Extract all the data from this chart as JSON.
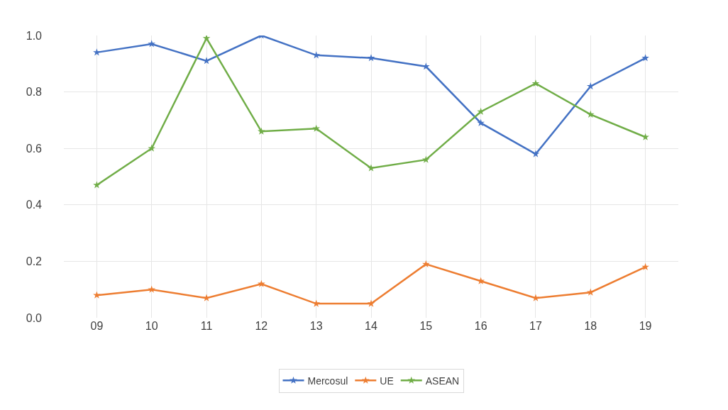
{
  "chart_data": {
    "type": "line",
    "categories": [
      "09",
      "10",
      "11",
      "12",
      "13",
      "14",
      "15",
      "16",
      "17",
      "18",
      "19"
    ],
    "series": [
      {
        "name": "Mercosul",
        "color": "#4472c4",
        "values": [
          0.94,
          0.97,
          0.91,
          1.0,
          0.93,
          0.92,
          0.89,
          0.69,
          0.58,
          0.82,
          0.92
        ]
      },
      {
        "name": "UE",
        "color": "#ed7d31",
        "values": [
          0.08,
          0.1,
          0.07,
          0.12,
          0.05,
          0.05,
          0.19,
          0.13,
          0.07,
          0.09,
          0.18
        ]
      },
      {
        "name": "ASEAN",
        "color": "#70ad47",
        "values": [
          0.47,
          0.6,
          0.99,
          0.66,
          0.67,
          0.53,
          0.56,
          0.73,
          0.83,
          0.72,
          0.64
        ]
      }
    ],
    "ylim": [
      0,
      1.0
    ],
    "yticks": [
      {
        "value": 0,
        "label": "0.0"
      },
      {
        "value": 0.2,
        "label": "0.2"
      },
      {
        "value": 0.4,
        "label": "0.4"
      },
      {
        "value": 0.6,
        "label": "0.6"
      },
      {
        "value": 0.8,
        "label": "0.8"
      },
      {
        "value": 1.0,
        "label": "1.0"
      }
    ],
    "grid": true,
    "legend": "bottom",
    "marker": "star",
    "line_style": "solid"
  }
}
